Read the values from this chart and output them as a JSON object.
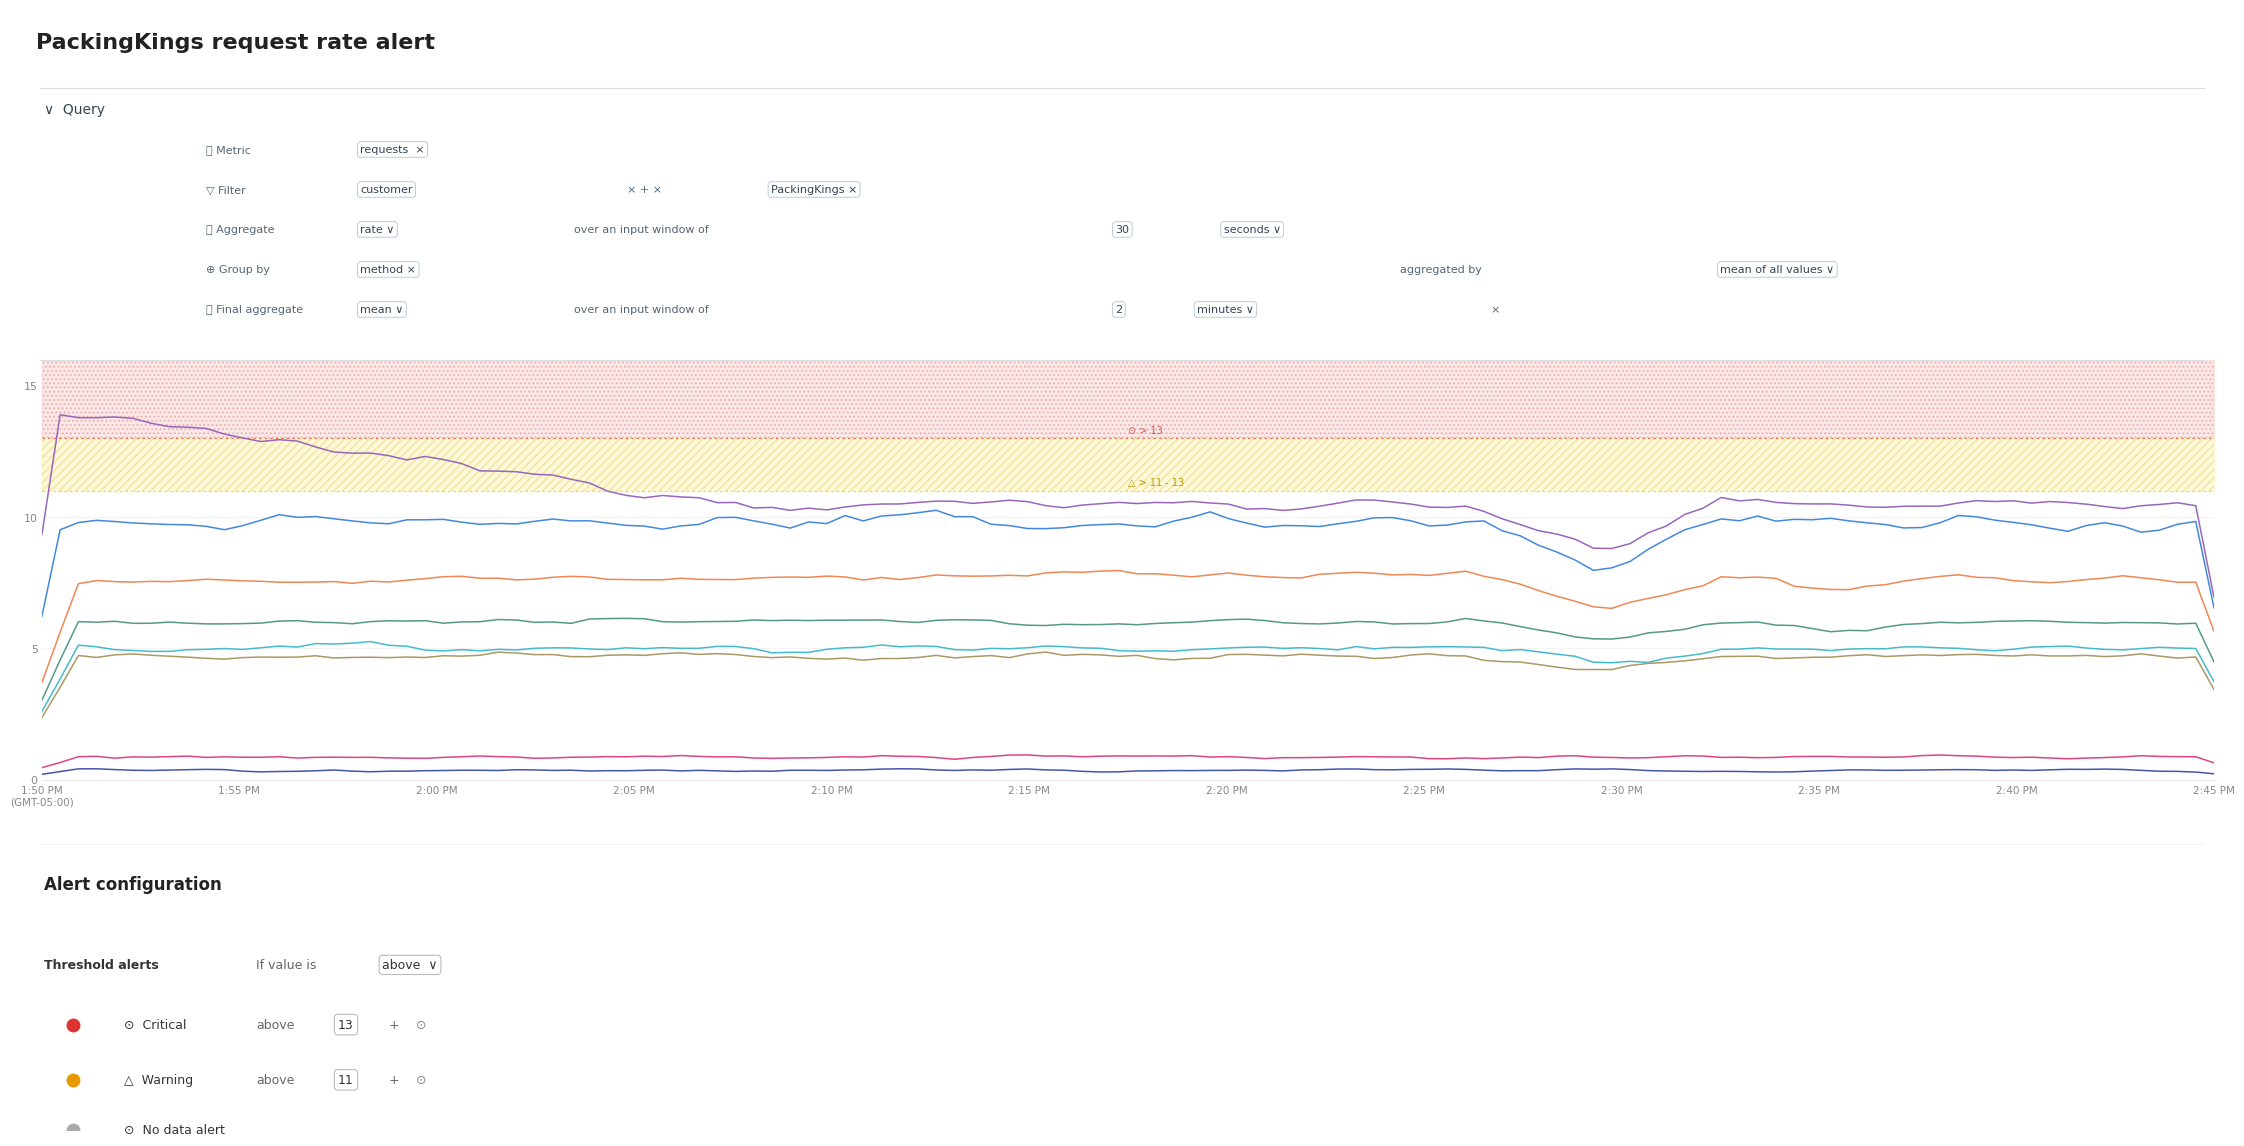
{
  "title": "PackingKings request rate alert",
  "bg_color": "#ffffff",
  "chart_bg": "#ffffff",
  "query_panel_bg": "#edf2f7",
  "query_header_bg": "#dce8f0",
  "critical_threshold": 13,
  "warning_threshold": 11,
  "y_max": 16,
  "y_min": 0,
  "y_ticks": [
    0,
    5,
    10,
    15
  ],
  "time_labels": [
    "1:50 PM\n(GMT-05:00)",
    "1:55 PM",
    "2:00 PM",
    "2:05 PM",
    "2:10 PM",
    "2:15 PM",
    "2:20 PM",
    "2:25 PM",
    "2:30 PM",
    "2:35 PM",
    "2:40 PM",
    "2:45 PM"
  ],
  "n_points": 120,
  "critical_color": "#e05252",
  "warning_color": "#e8c840",
  "critical_fill_color": "#f5c0c0",
  "warning_fill_color": "#fdf5c0",
  "line_colors": {
    "purple": "#9966bb",
    "blue": "#4488dd",
    "orange": "#ee8855",
    "teal": "#559988",
    "cyan": "#44bbcc",
    "khaki": "#aa9966",
    "pink": "#dd4488",
    "navy": "#4455aa"
  },
  "line_levels": {
    "purple": 10.5,
    "blue": 9.8,
    "orange": 7.5,
    "teal": 6.0,
    "cyan": 5.0,
    "khaki": 4.7,
    "pink": 0.85,
    "navy": 0.35
  }
}
